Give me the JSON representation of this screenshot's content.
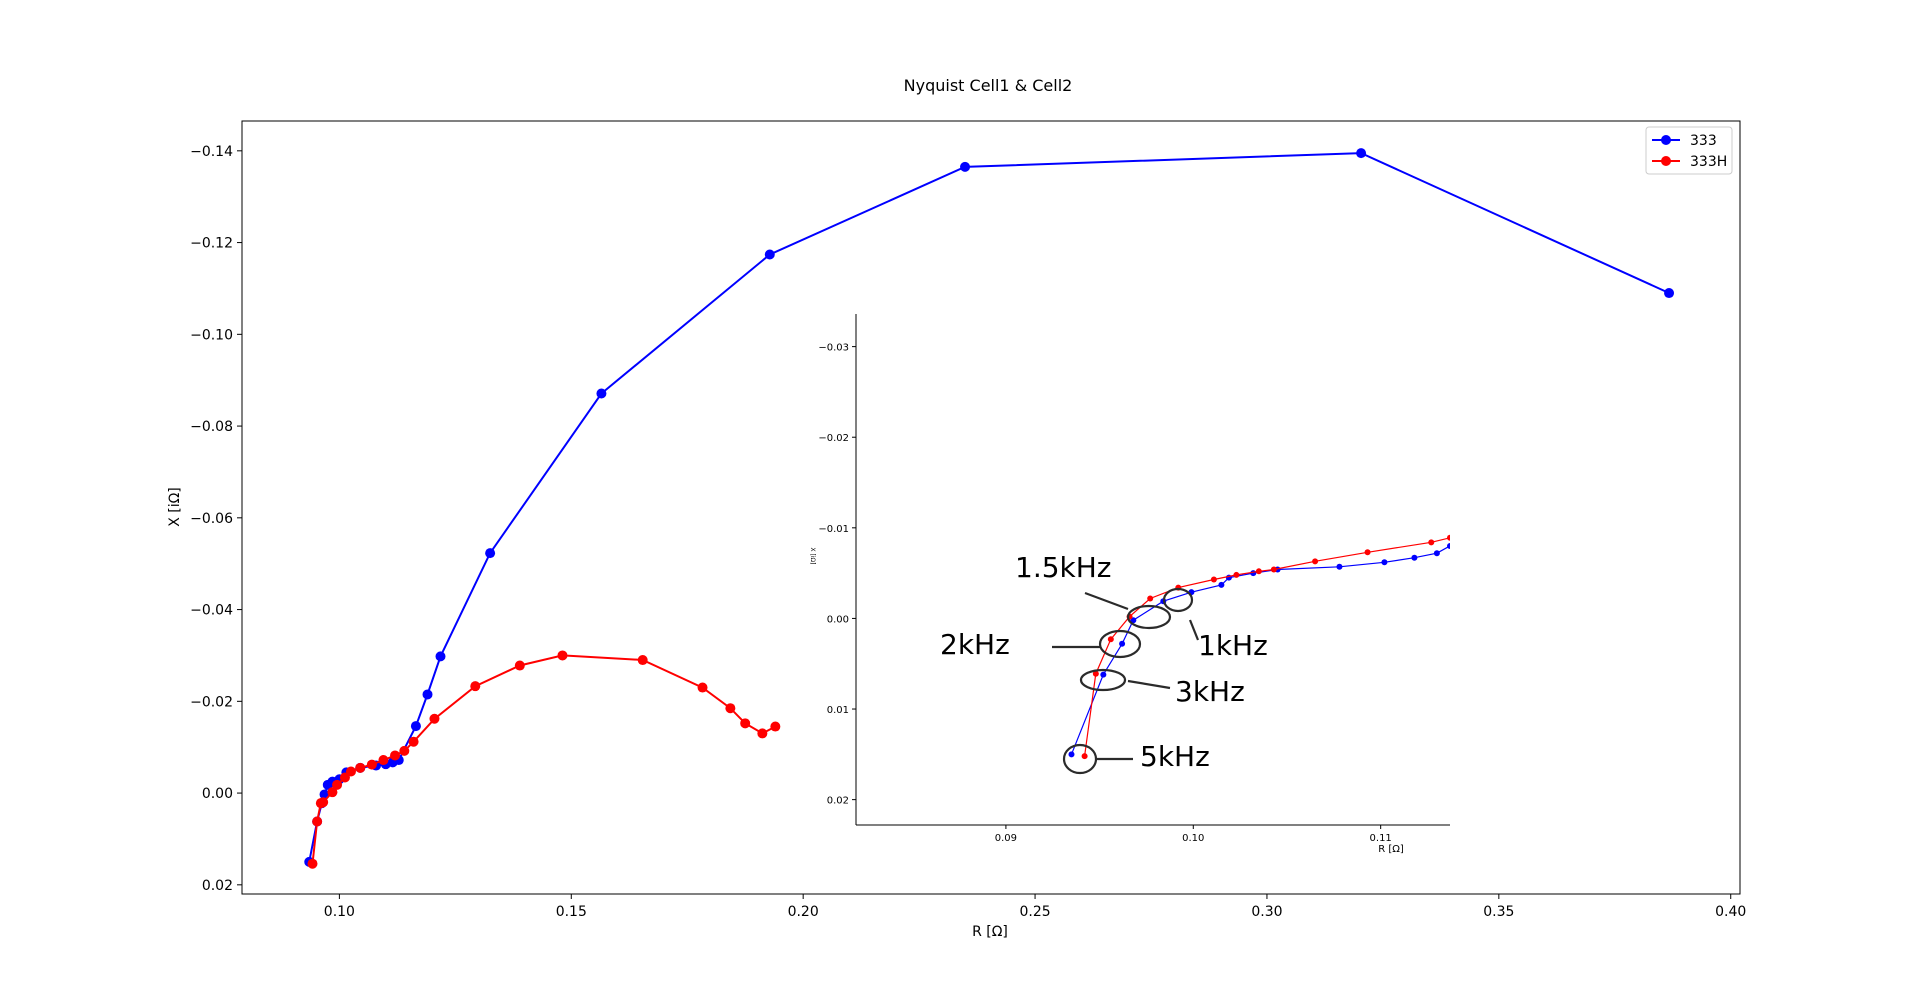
{
  "chart_data": [
    {
      "type": "line",
      "title": "Nyquist Cell1 & Cell2",
      "xlabel": "R [Ω]",
      "ylabel": "X [iΩ]",
      "xlim": [
        0.079,
        0.402
      ],
      "ylim": [
        0.022,
        -0.1465
      ],
      "y_axis_inverted": true,
      "xticks": [
        0.1,
        0.15,
        0.2,
        0.25,
        0.3,
        0.35,
        0.4
      ],
      "xtick_labels": [
        "0.10",
        "0.15",
        "0.20",
        "0.25",
        "0.30",
        "0.35",
        "0.40"
      ],
      "yticks": [
        0.02,
        0.0,
        -0.02,
        -0.04,
        -0.06,
        -0.08,
        -0.1,
        -0.12,
        -0.14
      ],
      "ytick_labels": [
        "0.02",
        "0.00",
        "−0.02",
        "−0.04",
        "−0.06",
        "−0.08",
        "−0.10",
        "−0.12",
        "−0.14"
      ],
      "legend_position": "top-right",
      "grid": false,
      "series": [
        {
          "name": "333",
          "color": "#0000ff",
          "x": [
            0.0935,
            0.0952,
            0.0962,
            0.0968,
            0.0975,
            0.0985,
            0.1,
            0.1015,
            0.1045,
            0.1079,
            0.11,
            0.1115,
            0.1128,
            0.1165,
            0.119,
            0.1218,
            0.1325,
            0.1565,
            0.1928,
            0.2349,
            0.3203,
            0.3867
          ],
          "y": [
            0.015,
            0.0062,
            0.0022,
            0.0003,
            -0.0018,
            -0.0025,
            -0.003,
            -0.0045,
            -0.0055,
            -0.006,
            -0.0063,
            -0.0067,
            -0.0072,
            -0.0146,
            -0.0215,
            -0.0298,
            -0.0523,
            -0.0871,
            -0.1174,
            -0.1365,
            -0.1395,
            -0.109
          ]
        },
        {
          "name": "333H",
          "color": "#ff0000",
          "x": [
            0.0942,
            0.0952,
            0.096,
            0.0965,
            0.0985,
            0.0995,
            0.1012,
            0.1025,
            0.1045,
            0.107,
            0.1095,
            0.112,
            0.114,
            0.116,
            0.1205,
            0.1293,
            0.1389,
            0.1481,
            0.1654,
            0.1783,
            0.1843,
            0.1875,
            0.1912,
            0.194
          ],
          "y": [
            0.0154,
            0.0062,
            0.0022,
            0.002,
            -0.0002,
            -0.0018,
            -0.0034,
            -0.0047,
            -0.0055,
            -0.0062,
            -0.0072,
            -0.0082,
            -0.0092,
            -0.0112,
            -0.0162,
            -0.0233,
            -0.0278,
            -0.03,
            -0.029,
            -0.023,
            -0.0185,
            -0.0152,
            -0.013,
            -0.0145
          ]
        }
      ]
    },
    {
      "type": "line",
      "title": "",
      "xlabel": "R [Ω]",
      "ylabel": "X [iΩ]",
      "xlim": [
        0.082,
        0.1137
      ],
      "ylim": [
        0.0228,
        -0.0336
      ],
      "y_axis_inverted": true,
      "xticks": [
        0.09,
        0.1,
        0.11
      ],
      "xtick_labels": [
        "0.09",
        "0.10",
        "0.11"
      ],
      "yticks": [
        0.02,
        0.01,
        0.0,
        -0.01,
        -0.02,
        -0.03
      ],
      "ytick_labels": [
        "0.02",
        "0.01",
        "0.00",
        "−0.01",
        "−0.02",
        "−0.03"
      ],
      "grid": false,
      "series": [
        {
          "name": "333",
          "color": "#0000ff",
          "x": [
            0.0935,
            0.0952,
            0.0962,
            0.0968,
            0.0984,
            0.0999,
            0.1015,
            0.1019,
            0.1032,
            0.1045,
            0.1078,
            0.1102,
            0.1118,
            0.113,
            0.1137
          ],
          "y": [
            0.015,
            0.0062,
            0.0028,
            0.0002,
            -0.0019,
            -0.0029,
            -0.0037,
            -0.0045,
            -0.005,
            -0.0054,
            -0.0057,
            -0.0062,
            -0.0067,
            -0.0072,
            -0.008
          ]
        },
        {
          "name": "333H",
          "color": "#ff0000",
          "x": [
            0.0942,
            0.0948,
            0.0956,
            0.0966,
            0.0977,
            0.0992,
            0.1011,
            0.1023,
            0.1035,
            0.1043,
            0.1065,
            0.1093,
            0.1127,
            0.1137
          ],
          "y": [
            0.0152,
            0.0061,
            0.0023,
            -0.0002,
            -0.0022,
            -0.0034,
            -0.0043,
            -0.0048,
            -0.0052,
            -0.0054,
            -0.0063,
            -0.0073,
            -0.0084,
            -0.0089
          ]
        }
      ],
      "annotations": [
        {
          "text": "1.5kHz",
          "x": 0.0979,
          "y": -0.0001
        },
        {
          "text": "1kHz",
          "x": 0.0988,
          "y": -0.0021
        },
        {
          "text": "2kHz",
          "x": 0.0956,
          "y": 0.0025
        },
        {
          "text": "3kHz",
          "x": 0.095,
          "y": 0.0063
        },
        {
          "text": "5kHz",
          "x": 0.0938,
          "y": 0.0152
        }
      ]
    }
  ]
}
